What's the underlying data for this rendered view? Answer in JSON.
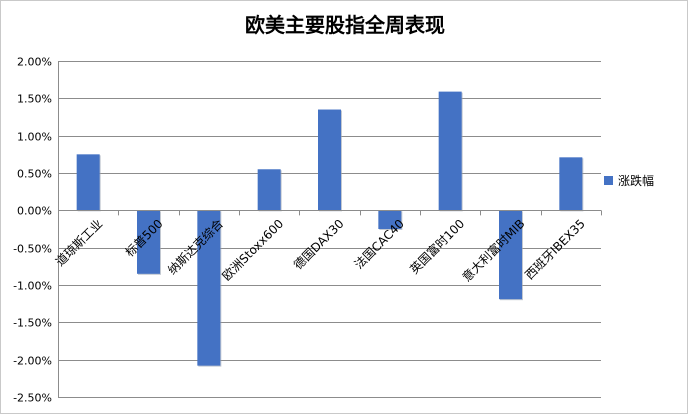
{
  "chart_data": {
    "type": "bar",
    "title": "欧美主要股指全周表现",
    "categories": [
      "道琼斯工业",
      "标普500",
      "纳斯达克综合",
      "欧洲Stoxx600",
      "德国DAX30",
      "法国CAC40",
      "英国富时100",
      "意大利富时MIB",
      "西班牙IBEX35"
    ],
    "series": [
      {
        "name": "涨跌幅",
        "values": [
          0.75,
          -0.85,
          -2.08,
          0.55,
          1.35,
          -0.25,
          1.59,
          -1.19,
          0.71
        ]
      }
    ],
    "ylim": [
      -2.5,
      2.0
    ],
    "ytick_step": 0.5,
    "ytick_labels": [
      "2.00%",
      "1.50%",
      "1.00%",
      "0.50%",
      "0.00%",
      "-0.50%",
      "-1.00%",
      "-1.50%",
      "-2.00%",
      "-2.50%"
    ],
    "grid": true,
    "legend_position": "right",
    "bar_color": "#4472C4"
  }
}
